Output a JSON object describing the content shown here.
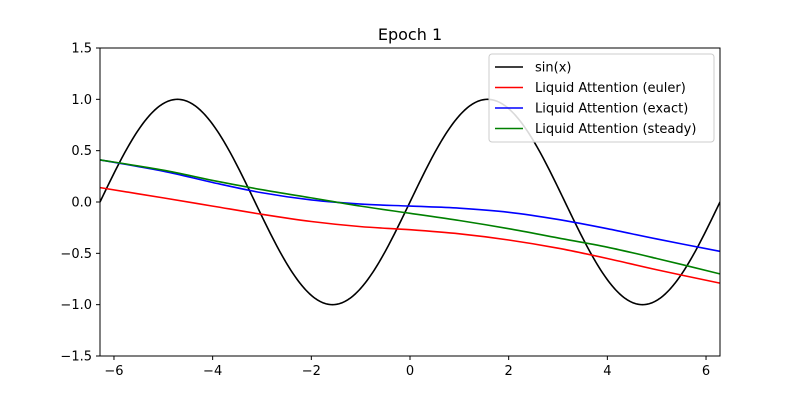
{
  "chart_data": {
    "type": "line",
    "title": "Epoch 1",
    "xlabel": "",
    "ylabel": "",
    "xlim": [
      -6.2832,
      6.2832
    ],
    "ylim": [
      -1.5,
      1.5
    ],
    "xticks": [
      -6,
      -4,
      -2,
      0,
      2,
      4,
      6
    ],
    "xtick_labels": [
      "−6",
      "−4",
      "−2",
      "0",
      "2",
      "4",
      "6"
    ],
    "yticks": [
      -1.5,
      -1.0,
      -0.5,
      0.0,
      0.5,
      1.0,
      1.5
    ],
    "ytick_labels": [
      "−1.5",
      "−1.0",
      "−0.5",
      "0.0",
      "0.5",
      "1.0",
      "1.5"
    ],
    "grid": false,
    "legend_position": "top-right",
    "series": [
      {
        "name": "sin(x)",
        "color": "#000000",
        "function": "sin"
      },
      {
        "name": "Liquid Attention (euler)",
        "color": "#ff0000",
        "x": [
          -6.28,
          -5,
          -4,
          -3,
          -2,
          -1,
          0,
          1,
          2,
          3,
          4,
          5,
          6.28
        ],
        "y": [
          0.14,
          0.04,
          -0.04,
          -0.12,
          -0.19,
          -0.24,
          -0.27,
          -0.31,
          -0.37,
          -0.45,
          -0.55,
          -0.66,
          -0.79
        ]
      },
      {
        "name": "Liquid Attention (exact)",
        "color": "#0000ff",
        "x": [
          -6.28,
          -5,
          -4,
          -3,
          -2,
          -1,
          0,
          1,
          2,
          3,
          4,
          5,
          6.28
        ],
        "y": [
          0.41,
          0.3,
          0.19,
          0.09,
          0.02,
          -0.02,
          -0.04,
          -0.06,
          -0.1,
          -0.17,
          -0.26,
          -0.36,
          -0.48
        ]
      },
      {
        "name": "Liquid Attention (steady)",
        "color": "#008000",
        "x": [
          -6.28,
          -5,
          -4,
          -3,
          -2,
          -1,
          0,
          1,
          2,
          3,
          4,
          5,
          6.28
        ],
        "y": [
          0.41,
          0.31,
          0.21,
          0.12,
          0.04,
          -0.04,
          -0.11,
          -0.18,
          -0.26,
          -0.35,
          -0.44,
          -0.55,
          -0.7
        ]
      }
    ]
  }
}
